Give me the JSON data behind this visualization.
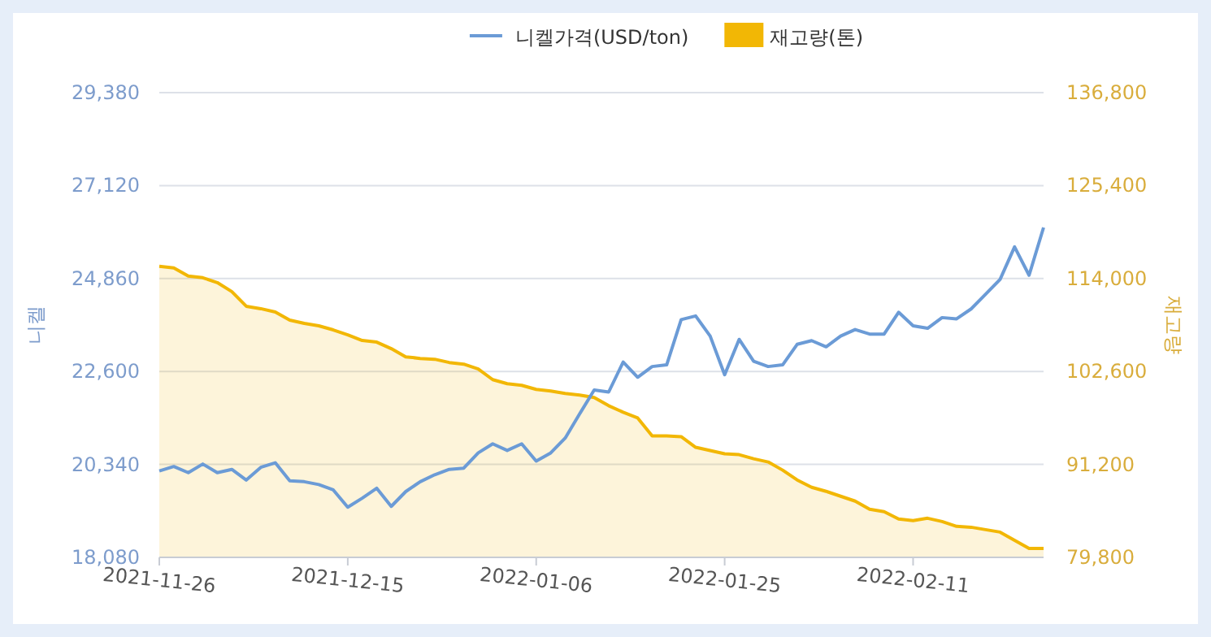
{
  "chart_data": {
    "type": "line",
    "ylabel": "니켈",
    "y2label": "재고량",
    "categories": [
      "2021-11-26",
      null,
      null,
      null,
      null,
      null,
      null,
      null,
      null,
      null,
      null,
      null,
      null,
      "2021-12-15",
      null,
      null,
      null,
      null,
      null,
      null,
      null,
      null,
      null,
      null,
      null,
      null,
      "2022-01-06",
      null,
      null,
      null,
      null,
      null,
      null,
      null,
      null,
      null,
      null,
      null,
      null,
      "2022-01-25",
      null,
      null,
      null,
      null,
      null,
      null,
      null,
      null,
      null,
      null,
      null,
      null,
      "2022-02-11",
      null,
      null,
      null,
      null,
      null,
      null,
      null,
      null,
      null
    ],
    "series": [
      {
        "name": "니켈가격(USD/ton)",
        "color": "#6b9bd6",
        "values": [
          20180,
          20290,
          20140,
          20350,
          20140,
          20220,
          19960,
          20270,
          20380,
          19940,
          19920,
          19850,
          19720,
          19300,
          19520,
          19760,
          19320,
          19680,
          19920,
          20090,
          20220,
          20250,
          20620,
          20840,
          20680,
          20840,
          20420,
          20620,
          20980,
          21570,
          22150,
          22100,
          22830,
          22460,
          22720,
          22760,
          23860,
          23950,
          23460,
          22520,
          23380,
          22850,
          22720,
          22760,
          23260,
          23350,
          23200,
          23460,
          23620,
          23510,
          23510,
          24040,
          23710,
          23650,
          23910,
          23880,
          24120,
          24480,
          24840,
          25630,
          24940,
          26100
        ]
      },
      {
        "name": "재고량(톤)",
        "type": "area",
        "axis": "y2",
        "color": "#f2b705",
        "values": [
          115500,
          115300,
          114300,
          114100,
          113500,
          112400,
          110600,
          110300,
          109900,
          108900,
          108500,
          108200,
          107700,
          107100,
          106400,
          106200,
          105400,
          104400,
          104200,
          104100,
          103700,
          103500,
          102900,
          101600,
          101100,
          100900,
          100400,
          100200,
          99900,
          99700,
          99400,
          98400,
          97600,
          96900,
          94700,
          94700,
          94600,
          93300,
          92900,
          92500,
          92400,
          91900,
          91500,
          90500,
          89300,
          88400,
          87900,
          87300,
          86700,
          85700,
          85400,
          84500,
          84300,
          84600,
          84200,
          83600,
          83500,
          83200,
          82900,
          81900,
          80900,
          80900
        ]
      }
    ],
    "ylim": [
      18080,
      29380
    ],
    "yticks": [
      {
        "value": 18080,
        "label": "18,080"
      },
      {
        "value": 20340,
        "label": "20,340"
      },
      {
        "value": 22600,
        "label": "22,600"
      },
      {
        "value": 24860,
        "label": "24,860"
      },
      {
        "value": 27120,
        "label": "27,120"
      },
      {
        "value": 29380,
        "label": "29,380"
      }
    ],
    "y2lim": [
      79800,
      136800
    ],
    "y2ticks": [
      {
        "value": 79800,
        "label": "79,800"
      },
      {
        "value": 91200,
        "label": "91,200"
      },
      {
        "value": 102600,
        "label": "102,600"
      },
      {
        "value": 114000,
        "label": "114,000"
      },
      {
        "value": 125400,
        "label": "125,400"
      },
      {
        "value": 136800,
        "label": "136,800"
      }
    ],
    "grid": "y",
    "legend": "top"
  }
}
